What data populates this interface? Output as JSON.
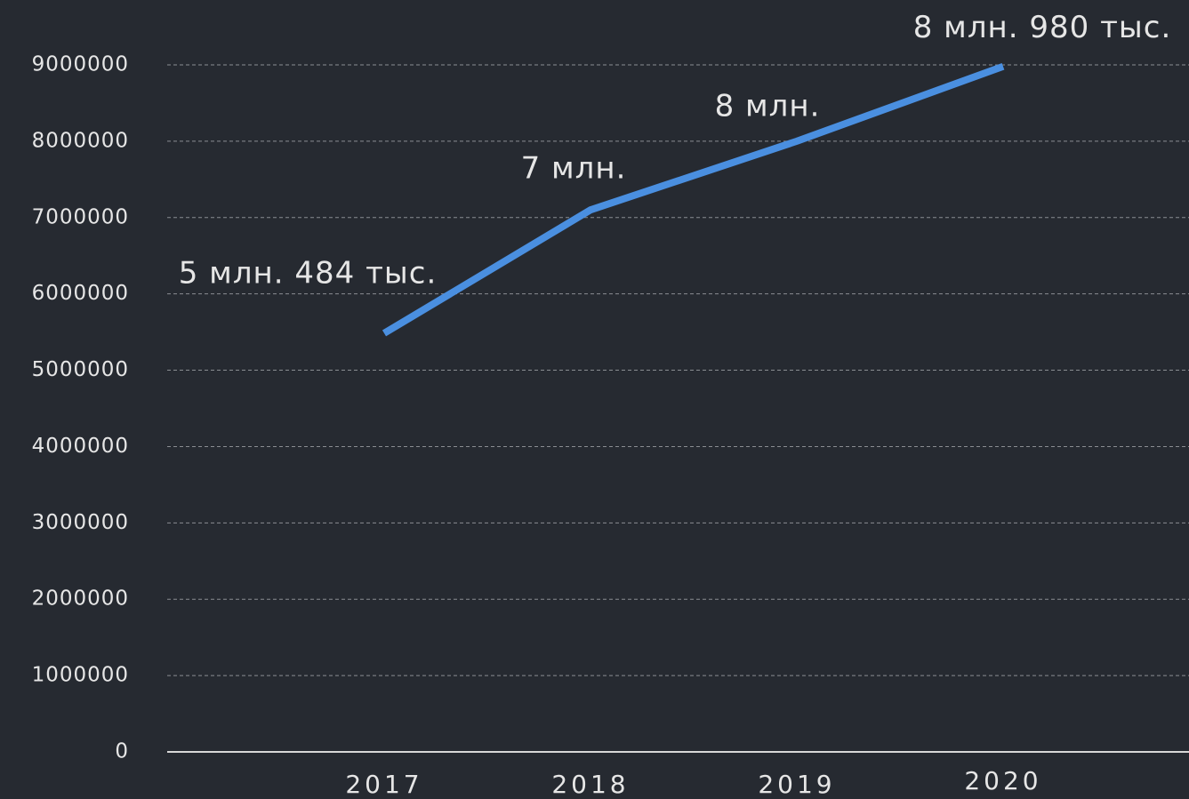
{
  "chart_data": {
    "type": "line",
    "categories": [
      "2017",
      "2018",
      "2019",
      "2020"
    ],
    "series": [
      {
        "name": "value",
        "color": "#4a8fe0",
        "values": [
          5484000,
          7100000,
          8000000,
          8980000
        ],
        "value_labels": [
          "5 млн. 484 тыс.",
          "7 млн.",
          "8 млн.",
          "8 млн. 980 тыс."
        ]
      }
    ],
    "ylim": [
      0,
      9000000
    ],
    "yticks": [
      0,
      1000000,
      2000000,
      3000000,
      4000000,
      5000000,
      6000000,
      7000000,
      8000000,
      9000000
    ],
    "grid": true
  }
}
